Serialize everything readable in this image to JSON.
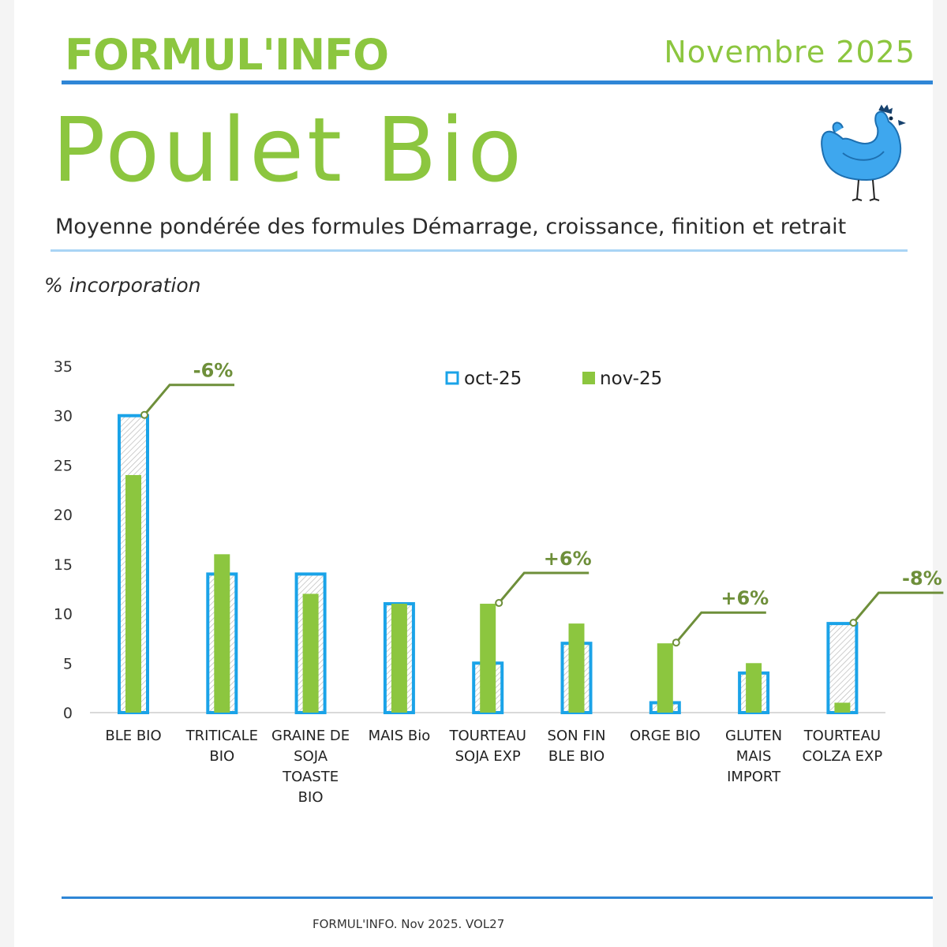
{
  "header": {
    "brand": "FORMUL'INFO",
    "date": "Novembre 2025",
    "title": "Poulet Bio",
    "subtitle": "Moyenne pondérée des formules Démarrage, croissance, finition et retrait"
  },
  "footer": {
    "text": "FORMUL'INFO. Nov 2025. VOL27"
  },
  "colors": {
    "accent_green": "#8cc63f",
    "accent_blue": "#1aa3e8",
    "rule_blue": "#2f86d6",
    "annotation": "#6e8f3a"
  },
  "icons": {
    "hen": "hen-icon"
  },
  "chart_data": {
    "type": "bar",
    "ylabel": "% incorporation",
    "ylim": [
      0,
      35
    ],
    "yticks": [
      0,
      5,
      10,
      15,
      20,
      25,
      30,
      35
    ],
    "categories": [
      [
        "BLE BIO"
      ],
      [
        "TRITICALE",
        "BIO"
      ],
      [
        "GRAINE DE",
        "SOJA",
        "TOASTE",
        "BIO"
      ],
      [
        "MAIS Bio"
      ],
      [
        "TOURTEAU",
        "SOJA EXP"
      ],
      [
        "SON FIN",
        "BLE BIO"
      ],
      [
        "ORGE BIO"
      ],
      [
        "GLUTEN",
        "MAIS",
        "IMPORT"
      ],
      [
        "TOURTEAU",
        "COLZA EXP"
      ]
    ],
    "series": [
      {
        "name": "oct-25",
        "values": [
          30,
          14,
          14,
          11,
          5,
          7,
          1,
          4,
          9
        ],
        "style": "outline-blue"
      },
      {
        "name": "nov-25",
        "values": [
          24,
          16,
          12,
          11,
          11,
          9,
          7,
          5,
          1
        ],
        "style": "filled-green"
      }
    ],
    "legend_position": "top",
    "grid": false,
    "annotations": [
      {
        "category_index": 0,
        "text": "-6%"
      },
      {
        "category_index": 4,
        "text": "+6%"
      },
      {
        "category_index": 6,
        "text": "+6%"
      },
      {
        "category_index": 8,
        "text": "-8%"
      }
    ]
  }
}
